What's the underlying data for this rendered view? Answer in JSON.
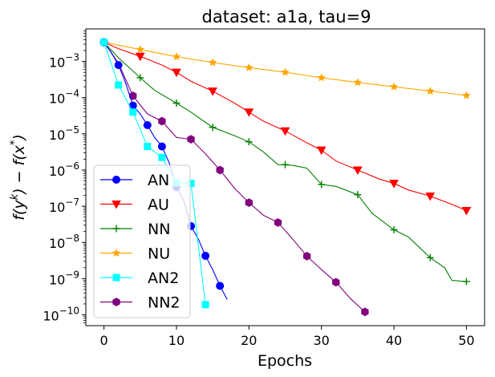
{
  "chart_data": {
    "type": "line",
    "title": "dataset: a1a, tau=9",
    "xlabel": "Epochs",
    "ylabel": "f(y^k) − f(x^*)",
    "xlim": [
      -2.5,
      52.5
    ],
    "ylim_log10": [
      -10.3,
      -2.1
    ],
    "yscale": "log",
    "x_ticks": [
      0,
      10,
      20,
      30,
      40,
      50
    ],
    "x_tick_labels": [
      "0",
      "10",
      "20",
      "30",
      "40",
      "50"
    ],
    "y_ticks_exp": [
      -10,
      -9,
      -8,
      -7,
      -6,
      -5,
      -4,
      -3
    ],
    "y_tick_labels": [
      "10",
      "10",
      "10",
      "10",
      "10",
      "10",
      "10",
      "10"
    ],
    "y_tick_exp_labels": [
      "−10",
      "−9",
      "−8",
      "−7",
      "−6",
      "−5",
      "−4",
      "−3"
    ],
    "legend_position": "lower-left",
    "series": [
      {
        "name": "AN",
        "color": "#0000ff",
        "marker": "circle",
        "line": [
          [
            0,
            -2.47
          ],
          [
            1,
            -2.75
          ],
          [
            2,
            -3.1
          ],
          [
            3,
            -3.6
          ],
          [
            4,
            -4.22
          ],
          [
            5,
            -4.45
          ],
          [
            6,
            -4.76
          ],
          [
            7,
            -5.1
          ],
          [
            8,
            -5.35
          ],
          [
            9,
            -5.8
          ],
          [
            10,
            -6.47
          ],
          [
            11,
            -6.85
          ],
          [
            12,
            -7.55
          ],
          [
            13,
            -7.9
          ],
          [
            14,
            -8.37
          ],
          [
            15,
            -8.75
          ],
          [
            16,
            -9.2
          ],
          [
            17,
            -9.58
          ]
        ],
        "markers": [
          [
            0,
            -2.47
          ],
          [
            2,
            -3.1
          ],
          [
            4,
            -4.22
          ],
          [
            6,
            -4.76
          ],
          [
            8,
            -5.35
          ],
          [
            10,
            -6.47
          ],
          [
            12,
            -7.55
          ],
          [
            14,
            -8.37
          ],
          [
            16,
            -9.2
          ]
        ]
      },
      {
        "name": "AU",
        "color": "#ff0000",
        "marker": "triangle-down",
        "line": [
          [
            0,
            -2.47
          ],
          [
            2,
            -2.65
          ],
          [
            5,
            -2.86
          ],
          [
            8,
            -3.1
          ],
          [
            10,
            -3.3
          ],
          [
            12,
            -3.55
          ],
          [
            15,
            -3.82
          ],
          [
            18,
            -4.15
          ],
          [
            20,
            -4.4
          ],
          [
            22,
            -4.65
          ],
          [
            25,
            -4.92
          ],
          [
            28,
            -5.25
          ],
          [
            30,
            -5.45
          ],
          [
            32,
            -5.75
          ],
          [
            35,
            -6.0
          ],
          [
            38,
            -6.25
          ],
          [
            40,
            -6.37
          ],
          [
            42,
            -6.55
          ],
          [
            45,
            -6.72
          ],
          [
            48,
            -6.95
          ],
          [
            50,
            -7.12
          ]
        ],
        "markers": [
          [
            5,
            -2.86
          ],
          [
            10,
            -3.3
          ],
          [
            15,
            -3.82
          ],
          [
            20,
            -4.4
          ],
          [
            25,
            -4.92
          ],
          [
            30,
            -5.45
          ],
          [
            35,
            -6.0
          ],
          [
            40,
            -6.37
          ],
          [
            45,
            -6.72
          ],
          [
            50,
            -7.12
          ]
        ]
      },
      {
        "name": "NN",
        "color": "#008000",
        "marker": "plus",
        "line": [
          [
            0,
            -2.47
          ],
          [
            2,
            -2.9
          ],
          [
            5,
            -3.45
          ],
          [
            7,
            -3.8
          ],
          [
            10,
            -4.15
          ],
          [
            12,
            -4.4
          ],
          [
            15,
            -4.82
          ],
          [
            18,
            -5.05
          ],
          [
            20,
            -5.22
          ],
          [
            22,
            -5.5
          ],
          [
            24,
            -5.85
          ],
          [
            26,
            -5.87
          ],
          [
            28,
            -5.95
          ],
          [
            30,
            -6.4
          ],
          [
            32,
            -6.45
          ],
          [
            35,
            -6.68
          ],
          [
            37,
            -7.2
          ],
          [
            40,
            -7.65
          ],
          [
            42,
            -7.85
          ],
          [
            45,
            -8.42
          ],
          [
            47,
            -8.7
          ],
          [
            48,
            -9.05
          ],
          [
            50,
            -9.08
          ]
        ],
        "markers": [
          [
            5,
            -3.45
          ],
          [
            10,
            -4.15
          ],
          [
            15,
            -4.82
          ],
          [
            20,
            -5.22
          ],
          [
            25,
            -5.85
          ],
          [
            30,
            -6.4
          ],
          [
            35,
            -6.68
          ],
          [
            40,
            -7.65
          ],
          [
            45,
            -8.42
          ],
          [
            50,
            -9.08
          ]
        ]
      },
      {
        "name": "NU",
        "color": "#ffa500",
        "marker": "star",
        "line": [
          [
            0,
            -2.47
          ],
          [
            5,
            -2.67
          ],
          [
            10,
            -2.87
          ],
          [
            15,
            -3.03
          ],
          [
            20,
            -3.17
          ],
          [
            25,
            -3.3
          ],
          [
            30,
            -3.45
          ],
          [
            35,
            -3.58
          ],
          [
            40,
            -3.7
          ],
          [
            45,
            -3.82
          ],
          [
            50,
            -3.94
          ]
        ],
        "markers": [
          [
            5,
            -2.67
          ],
          [
            10,
            -2.87
          ],
          [
            15,
            -3.03
          ],
          [
            20,
            -3.17
          ],
          [
            25,
            -3.3
          ],
          [
            30,
            -3.45
          ],
          [
            35,
            -3.58
          ],
          [
            40,
            -3.7
          ],
          [
            45,
            -3.82
          ],
          [
            50,
            -3.94
          ]
        ]
      },
      {
        "name": "AN2",
        "color": "#00ffff",
        "marker": "square",
        "line": [
          [
            0,
            -2.47
          ],
          [
            2,
            -3.65
          ],
          [
            4,
            -4.4
          ],
          [
            6,
            -5.35
          ],
          [
            8,
            -5.65
          ],
          [
            10,
            -6.35
          ],
          [
            12,
            -6.37
          ],
          [
            14,
            -9.72
          ]
        ],
        "markers": [
          [
            0,
            -2.47
          ],
          [
            2,
            -3.65
          ],
          [
            4,
            -4.4
          ],
          [
            6,
            -5.35
          ],
          [
            8,
            -5.65
          ],
          [
            10,
            -6.35
          ],
          [
            12,
            -6.37
          ],
          [
            14,
            -9.72
          ]
        ]
      },
      {
        "name": "NN2",
        "color": "#800080",
        "marker": "hexagon",
        "line": [
          [
            0,
            -2.47
          ],
          [
            2,
            -3.05
          ],
          [
            4,
            -3.95
          ],
          [
            6,
            -4.45
          ],
          [
            8,
            -4.65
          ],
          [
            10,
            -5.1
          ],
          [
            12,
            -5.15
          ],
          [
            14,
            -5.55
          ],
          [
            16,
            -6.0
          ],
          [
            18,
            -6.5
          ],
          [
            20,
            -6.9
          ],
          [
            22,
            -7.25
          ],
          [
            24,
            -7.45
          ],
          [
            26,
            -7.9
          ],
          [
            28,
            -8.38
          ],
          [
            30,
            -8.75
          ],
          [
            32,
            -9.1
          ],
          [
            34,
            -9.55
          ],
          [
            36,
            -9.92
          ]
        ],
        "markers": [
          [
            0,
            -2.47
          ],
          [
            4,
            -3.95
          ],
          [
            8,
            -4.65
          ],
          [
            12,
            -5.15
          ],
          [
            16,
            -6.0
          ],
          [
            20,
            -6.9
          ],
          [
            24,
            -7.45
          ],
          [
            28,
            -8.38
          ],
          [
            32,
            -9.1
          ],
          [
            36,
            -9.92
          ]
        ]
      }
    ]
  }
}
